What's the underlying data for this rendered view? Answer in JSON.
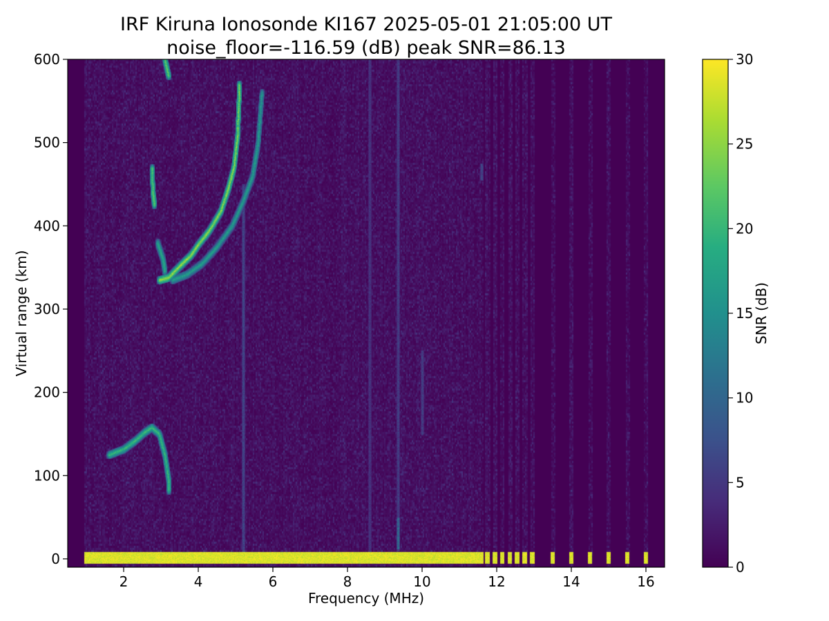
{
  "chart_data": {
    "type": "heatmap",
    "title": "IRF Kiruna Ionosonde KI167 2025-05-01 21:05:00  UT",
    "subtitle": "noise_floor=-116.59 (dB) peak SNR=86.13",
    "xlabel": "Frequency (MHz)",
    "ylabel": "Virtual range (km)",
    "xlim": [
      0.5,
      16.5
    ],
    "ylim": [
      -10,
      600
    ],
    "xticks": [
      2,
      4,
      6,
      8,
      10,
      12,
      14,
      16
    ],
    "yticks": [
      0,
      100,
      200,
      300,
      400,
      500,
      600
    ],
    "grid": false,
    "colormap": "viridis",
    "colorbar": {
      "label": "SNR (dB)",
      "range": [
        0,
        30
      ],
      "ticks": [
        0,
        5,
        10,
        15,
        20,
        25,
        30
      ]
    },
    "data_freq_range": [
      0.95,
      16.1
    ],
    "continuous_sweep_end_freq": 11.65,
    "discrete_frequencies": [
      11.75,
      11.95,
      12.15,
      12.35,
      12.55,
      12.75,
      12.95,
      13.5,
      14.0,
      14.5,
      15.0,
      15.5,
      16.0
    ],
    "background_snr": 1.0,
    "ground_echo": {
      "range": [
        -5,
        8
      ],
      "snr": 30
    },
    "echo_traces": [
      {
        "name": "",
        "points": [
          [
            2.95,
            335
          ],
          [
            3.2,
            338
          ],
          [
            3.5,
            352
          ],
          [
            3.8,
            365
          ],
          [
            4.0,
            378
          ],
          [
            4.3,
            395
          ],
          [
            4.6,
            418
          ],
          [
            4.8,
            445
          ],
          [
            4.95,
            470
          ],
          [
            5.05,
            510
          ],
          [
            5.1,
            570
          ]
        ],
        "snr": 25
      },
      {
        "name": "",
        "points": [
          [
            3.3,
            335
          ],
          [
            3.7,
            342
          ],
          [
            4.1,
            355
          ],
          [
            4.5,
            375
          ],
          [
            4.9,
            400
          ],
          [
            5.2,
            430
          ],
          [
            5.45,
            460
          ],
          [
            5.6,
            500
          ],
          [
            5.7,
            560
          ]
        ],
        "snr": 17
      },
      {
        "name": "",
        "points": [
          [
            2.9,
            380
          ],
          [
            3.05,
            360
          ],
          [
            3.1,
            345
          ]
        ],
        "snr": 18
      },
      {
        "name": "",
        "points": [
          [
            1.6,
            125
          ],
          [
            2.0,
            132
          ],
          [
            2.3,
            142
          ],
          [
            2.55,
            152
          ],
          [
            2.75,
            158
          ],
          [
            2.95,
            150
          ],
          [
            3.1,
            125
          ],
          [
            3.2,
            95
          ],
          [
            3.2,
            82
          ]
        ],
        "snr": 20
      },
      {
        "name": "",
        "points": [
          [
            2.75,
            470
          ],
          [
            2.78,
            440
          ],
          [
            2.82,
            425
          ]
        ],
        "snr": 22
      },
      {
        "name": "",
        "points": [
          [
            3.1,
            600
          ],
          [
            3.15,
            590
          ],
          [
            3.2,
            580
          ]
        ],
        "snr": 22
      }
    ],
    "vertical_streaks": [
      {
        "freq": 5.2,
        "range": [
          0,
          450
        ],
        "snr": 8
      },
      {
        "freq": 8.6,
        "range": [
          0,
          600
        ],
        "snr": 6
      },
      {
        "freq": 9.35,
        "range": [
          10,
          600
        ],
        "snr": 7
      },
      {
        "freq": 9.35,
        "range": [
          12,
          50
        ],
        "snr": 13
      },
      {
        "freq": 10.0,
        "range": [
          150,
          250
        ],
        "snr": 7
      },
      {
        "freq": 11.6,
        "range": [
          455,
          475
        ],
        "snr": 8
      }
    ]
  }
}
